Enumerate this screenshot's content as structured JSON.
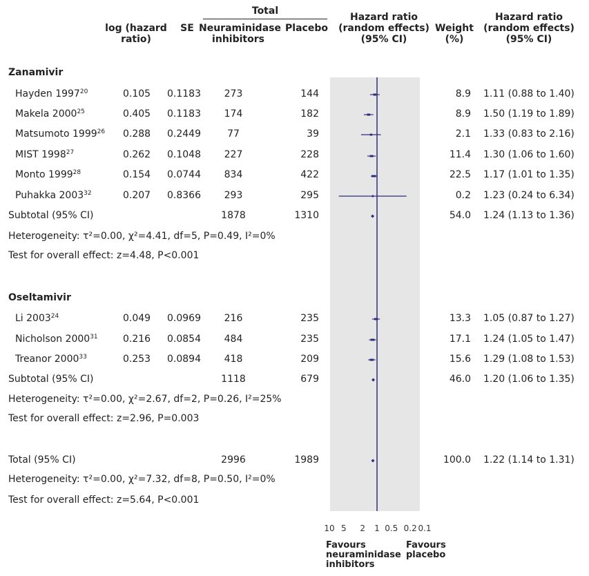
{
  "headers": {
    "total": "Total",
    "log_hr": "log (hazard ratio)",
    "se": "SE",
    "ni": "Neuraminidase inhibitors",
    "placebo": "Placebo",
    "hr_random": "Hazard ratio (random effects) (95% CI)",
    "weight": "Weight (%)",
    "hr_right": "Hazard ratio (random effects) (95% CI)"
  },
  "groups": [
    {
      "name": "Zanamivir",
      "rows": [
        {
          "study": "Hayden 1997",
          "ref": "20",
          "log_hr": "0.105",
          "se": "0.1183",
          "ni": "273",
          "placebo": "144",
          "weight": "8.9",
          "ci_text": "1.11 (0.88 to 1.40)"
        },
        {
          "study": "Makela 2000",
          "ref": "25",
          "log_hr": "0.405",
          "se": "0.1183",
          "ni": "174",
          "placebo": "182",
          "weight": "8.9",
          "ci_text": "1.50 (1.19 to 1.89)"
        },
        {
          "study": "Matsumoto 1999",
          "ref": "26",
          "log_hr": "0.288",
          "se": "0.2449",
          "ni": "77",
          "placebo": "39",
          "weight": "2.1",
          "ci_text": "1.33 (0.83 to 2.16)"
        },
        {
          "study": "MIST 1998",
          "ref": "27",
          "log_hr": "0.262",
          "se": "0.1048",
          "ni": "227",
          "placebo": "228",
          "weight": "11.4",
          "ci_text": "1.30 (1.06 to 1.60)"
        },
        {
          "study": "Monto 1999",
          "ref": "28",
          "log_hr": "0.154",
          "se": "0.0744",
          "ni": "834",
          "placebo": "422",
          "weight": "22.5",
          "ci_text": "1.17 (1.01 to 1.35)"
        },
        {
          "study": "Puhakka 2003",
          "ref": "32",
          "log_hr": "0.207",
          "se": "0.8366",
          "ni": "293",
          "placebo": "295",
          "weight": "0.2",
          "ci_text": "1.23 (0.24 to 6.34)"
        }
      ],
      "subtotal": {
        "label": "Subtotal (95% CI)",
        "ni": "1878",
        "placebo": "1310",
        "weight": "54.0",
        "ci_text": "1.24 (1.13 to 1.36)"
      },
      "heterogeneity": "Heterogeneity: τ²=0.00, χ²=4.41, df=5, P=0.49, I²=0%",
      "overall": "Test for overall effect: z=4.48, P<0.001"
    },
    {
      "name": "Oseltamivir",
      "rows": [
        {
          "study": "Li 2003",
          "ref": "24",
          "log_hr": "0.049",
          "se": "0.0969",
          "ni": "216",
          "placebo": "235",
          "weight": "13.3",
          "ci_text": "1.05 (0.87 to 1.27)"
        },
        {
          "study": "Nicholson 2000",
          "ref": "31",
          "log_hr": "0.216",
          "se": "0.0854",
          "ni": "484",
          "placebo": "235",
          "weight": "17.1",
          "ci_text": "1.24 (1.05 to 1.47)"
        },
        {
          "study": "Treanor 2000",
          "ref": "33",
          "log_hr": "0.253",
          "se": "0.0894",
          "ni": "418",
          "placebo": "209",
          "weight": "15.6",
          "ci_text": "1.29 (1.08 to 1.53)"
        }
      ],
      "subtotal": {
        "label": "Subtotal (95% CI)",
        "ni": "1118",
        "placebo": "679",
        "weight": "46.0",
        "ci_text": "1.20 (1.06 to 1.35)"
      },
      "heterogeneity": "Heterogeneity: τ²=0.00, χ²=2.67, df=2, P=0.26, I²=25%",
      "overall": "Test for overall effect: z=2.96, P=0.003"
    }
  ],
  "total": {
    "label": "Total (95% CI)",
    "ni": "2996",
    "placebo": "1989",
    "weight": "100.0",
    "ci_text": "1.22 (1.14 to 1.31)",
    "heterogeneity": "Heterogeneity: τ²=0.00, χ²=7.32, df=8, P=0.50, I²=0%",
    "overall": "Test for overall effect: z=5.64, P<0.001"
  },
  "axis": {
    "ticks": [
      "10",
      "5",
      "2",
      "1",
      "0.5",
      "0.2",
      "0.1"
    ],
    "favours_left": "Favours neuraminidase inhibitors",
    "favours_right": "Favours placebo"
  },
  "colors": {
    "marker": "#2e2d7a",
    "panel": "#e6e6e6"
  },
  "chart_data": {
    "type": "forest",
    "scale": "log",
    "xlim": [
      0.1,
      10
    ],
    "reference_line": 1,
    "x_reversed": true,
    "series": [
      {
        "name": "Hayden 1997",
        "hr": 1.11,
        "lo": 0.88,
        "hi": 1.4,
        "weight": 8.9
      },
      {
        "name": "Makela 2000",
        "hr": 1.5,
        "lo": 1.19,
        "hi": 1.89,
        "weight": 8.9
      },
      {
        "name": "Matsumoto 1999",
        "hr": 1.33,
        "lo": 0.83,
        "hi": 2.16,
        "weight": 2.1
      },
      {
        "name": "MIST 1998",
        "hr": 1.3,
        "lo": 1.06,
        "hi": 1.6,
        "weight": 11.4
      },
      {
        "name": "Monto 1999",
        "hr": 1.17,
        "lo": 1.01,
        "hi": 1.35,
        "weight": 22.5
      },
      {
        "name": "Puhakka 2003",
        "hr": 1.23,
        "lo": 0.24,
        "hi": 6.34,
        "weight": 0.2
      },
      {
        "name": "Subtotal (95% CI)",
        "hr": 1.24,
        "lo": 1.13,
        "hi": 1.36,
        "weight": 54.0,
        "summary": true
      },
      {
        "name": "Li 2003",
        "hr": 1.05,
        "lo": 0.87,
        "hi": 1.27,
        "weight": 13.3
      },
      {
        "name": "Nicholson 2000",
        "hr": 1.24,
        "lo": 1.05,
        "hi": 1.47,
        "weight": 17.1
      },
      {
        "name": "Treanor 2000",
        "hr": 1.29,
        "lo": 1.08,
        "hi": 1.53,
        "weight": 15.6
      },
      {
        "name": "Subtotal (95% CI)",
        "hr": 1.2,
        "lo": 1.06,
        "hi": 1.35,
        "weight": 46.0,
        "summary": true
      },
      {
        "name": "Total (95% CI)",
        "hr": 1.22,
        "lo": 1.14,
        "hi": 1.31,
        "weight": 100.0,
        "summary": true
      }
    ]
  }
}
